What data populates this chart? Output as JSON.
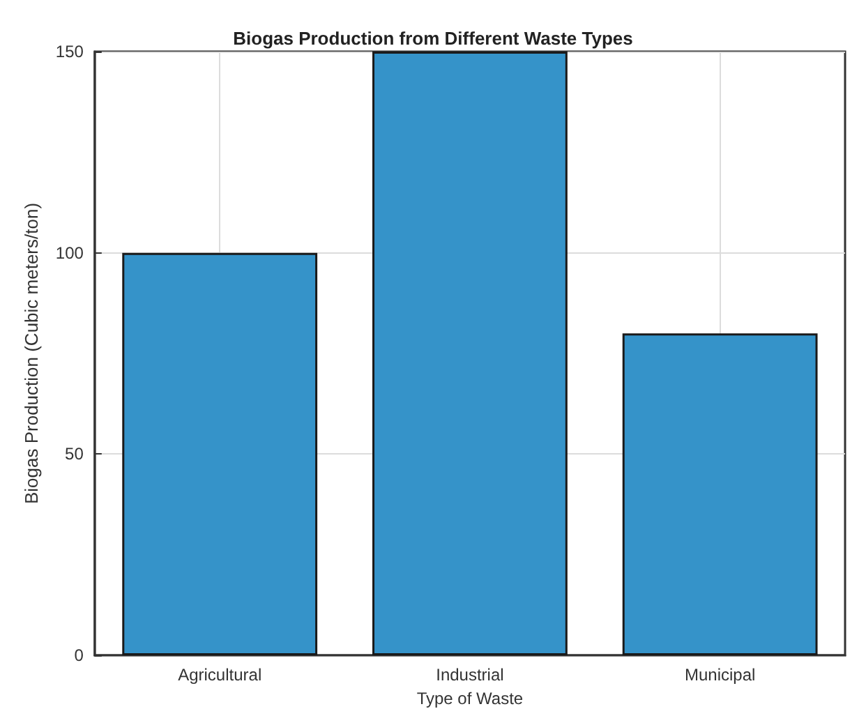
{
  "chart_data": {
    "type": "bar",
    "title": "Biogas Production from Different Waste Types",
    "xlabel": "Type of Waste",
    "ylabel": "Biogas Production (Cubic meters/ton)",
    "categories": [
      "Agricultural",
      "Industrial",
      "Municipal"
    ],
    "values": [
      100,
      150,
      80
    ],
    "color": "#3593c9",
    "ylim": [
      0,
      150
    ],
    "yticks": [
      0,
      50,
      100,
      150
    ],
    "grid": true
  }
}
